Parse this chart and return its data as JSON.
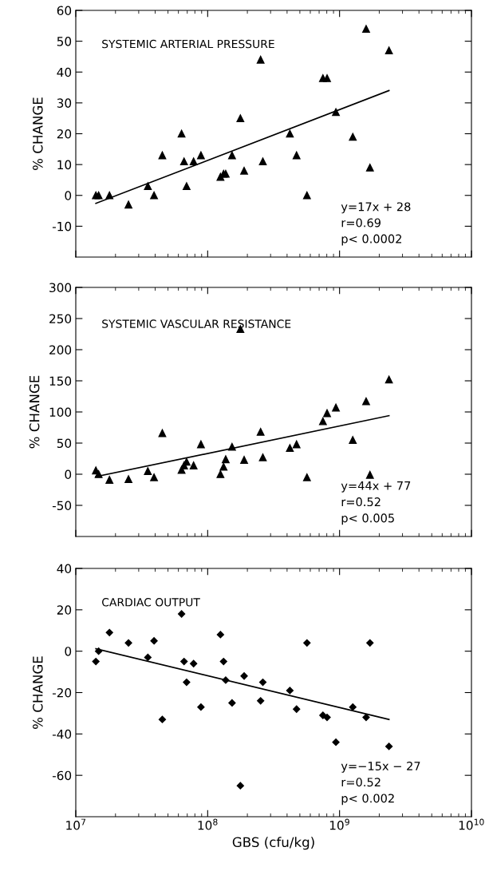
{
  "chart_data": [
    {
      "type": "scatter",
      "title": "SYSTEMIC ARTERIAL PRESSURE",
      "ylabel": "% CHANGE",
      "log": "x",
      "xlim": [
        10000000.0,
        10000000000.0
      ],
      "xticks": [
        {
          "value": 10000000.0,
          "label": null
        },
        {
          "value": 100000000.0,
          "label": null
        },
        {
          "value": 1000000000.0,
          "label": null
        },
        {
          "value": 10000000000.0,
          "label": null
        }
      ],
      "ylim": [
        -20,
        60
      ],
      "yticks": [
        -10,
        0,
        10,
        20,
        30,
        40,
        50,
        60
      ],
      "tick_labels": "y",
      "grid": false,
      "legend": false,
      "marker": "triangle",
      "annotations": [
        "y=17x + 28",
        "r=0.69",
        "p< 0.0002"
      ],
      "series": [
        {
          "color": "#000000",
          "x": [
            14200000.0,
            14900000.0,
            18000000.0,
            25100000.0,
            35200000.0,
            39200000.0,
            45300000.0,
            63400000.0,
            66200000.0,
            69200000.0,
            78200000.0,
            88900000.0,
            125000000.0,
            132000000.0,
            137000000.0,
            153000000.0,
            177000000.0,
            189000000.0,
            252000000.0,
            262000000.0,
            420000000.0,
            472000000.0,
            566000000.0,
            748000000.0,
            804000000.0,
            938000000.0,
            1260000000.0,
            1590000000.0,
            1700000000.0,
            2370000000.0
          ],
          "values": [
            0,
            0,
            0,
            -3,
            3,
            0,
            13,
            20,
            11,
            3,
            11,
            13,
            6,
            7,
            7,
            13,
            25,
            8,
            44,
            11,
            20,
            13,
            0,
            38,
            38,
            27,
            19,
            54,
            9,
            47
          ]
        },
        {
          "type": "line",
          "color": "#000000",
          "marker": "none",
          "x": [
            14200000.0,
            2370000000.0
          ],
          "values": [
            -2.6,
            34
          ]
        }
      ]
    },
    {
      "type": "scatter",
      "title": "SYSTEMIC VASCULAR RESISTANCE",
      "ylabel": "% CHANGE",
      "log": "x",
      "xlim": [
        10000000.0,
        10000000000.0
      ],
      "xticks": [
        {
          "value": 10000000.0,
          "label": null
        },
        {
          "value": 100000000.0,
          "label": null
        },
        {
          "value": 1000000000.0,
          "label": null
        },
        {
          "value": 10000000000.0,
          "label": null
        }
      ],
      "ylim": [
        -100,
        300
      ],
      "yticks": [
        -50,
        0,
        50,
        100,
        150,
        200,
        250,
        300
      ],
      "tick_labels": "y",
      "grid": false,
      "legend": false,
      "marker": "triangle",
      "annotations": [
        "y=44x + 77",
        "r=0.52",
        "p< 0.005"
      ],
      "series": [
        {
          "color": "#000000",
          "x": [
            14200000.0,
            14900000.0,
            18000000.0,
            25100000.0,
            35200000.0,
            39200000.0,
            45300000.0,
            63400000.0,
            66200000.0,
            69200000.0,
            78200000.0,
            88900000.0,
            125000000.0,
            132000000.0,
            137000000.0,
            153000000.0,
            177000000.0,
            189000000.0,
            252000000.0,
            262000000.0,
            420000000.0,
            472000000.0,
            566000000.0,
            748000000.0,
            804000000.0,
            938000000.0,
            1260000000.0,
            1590000000.0,
            1700000000.0,
            2370000000.0
          ],
          "values": [
            6,
            0,
            -9,
            -8,
            5,
            -5,
            66,
            7,
            14,
            20,
            14,
            48,
            0,
            12,
            24,
            44,
            233,
            23,
            68,
            27,
            42,
            48,
            -5,
            85,
            98,
            107,
            55,
            117,
            -1,
            152
          ]
        },
        {
          "type": "line",
          "color": "#000000",
          "marker": "none",
          "x": [
            14200000.0,
            2370000000.0
          ],
          "values": [
            -4,
            94
          ]
        }
      ]
    },
    {
      "type": "scatter",
      "title": "CARDIAC OUTPUT",
      "xlabel": "GBS (cfu/kg)",
      "ylabel": "% CHANGE",
      "log": "x",
      "xlim": [
        10000000.0,
        10000000000.0
      ],
      "xticks": [
        {
          "value": 10000000.0,
          "label": "10$^{7}$"
        },
        {
          "value": 100000000.0,
          "label": "10$^{8}$"
        },
        {
          "value": 1000000000.0,
          "label": "10$^{9}$"
        },
        {
          "value": 10000000000.0,
          "label": "10$^{10}$"
        }
      ],
      "ylim": [
        -80,
        40
      ],
      "yticks": [
        -60,
        -40,
        -20,
        0,
        20,
        40
      ],
      "grid": false,
      "legend": false,
      "marker": "diamond",
      "annotations": [
        "y=−15x − 27",
        "r=0.52",
        "p< 0.002"
      ],
      "series": [
        {
          "color": "#000000",
          "x": [
            14200000.0,
            14900000.0,
            18000000.0,
            25100000.0,
            35200000.0,
            39200000.0,
            45300000.0,
            63400000.0,
            66200000.0,
            69200000.0,
            78200000.0,
            88900000.0,
            125000000.0,
            132000000.0,
            137000000.0,
            153000000.0,
            177000000.0,
            189000000.0,
            252000000.0,
            262000000.0,
            420000000.0,
            472000000.0,
            566000000.0,
            748000000.0,
            804000000.0,
            938000000.0,
            1260000000.0,
            1590000000.0,
            1700000000.0,
            2370000000.0
          ],
          "values": [
            -5,
            0,
            9,
            4,
            -3,
            5,
            -33,
            18,
            -5,
            -15,
            -6,
            -27,
            8,
            -5,
            -14,
            -25,
            -65,
            -12,
            -24,
            -15,
            -19,
            -28,
            4,
            -31,
            -32,
            -44,
            -27,
            -32,
            4,
            -46
          ]
        },
        {
          "type": "line",
          "color": "#000000",
          "marker": "none",
          "x": [
            14200000.0,
            2370000000.0
          ],
          "values": [
            1.2,
            -33
          ]
        }
      ]
    }
  ]
}
